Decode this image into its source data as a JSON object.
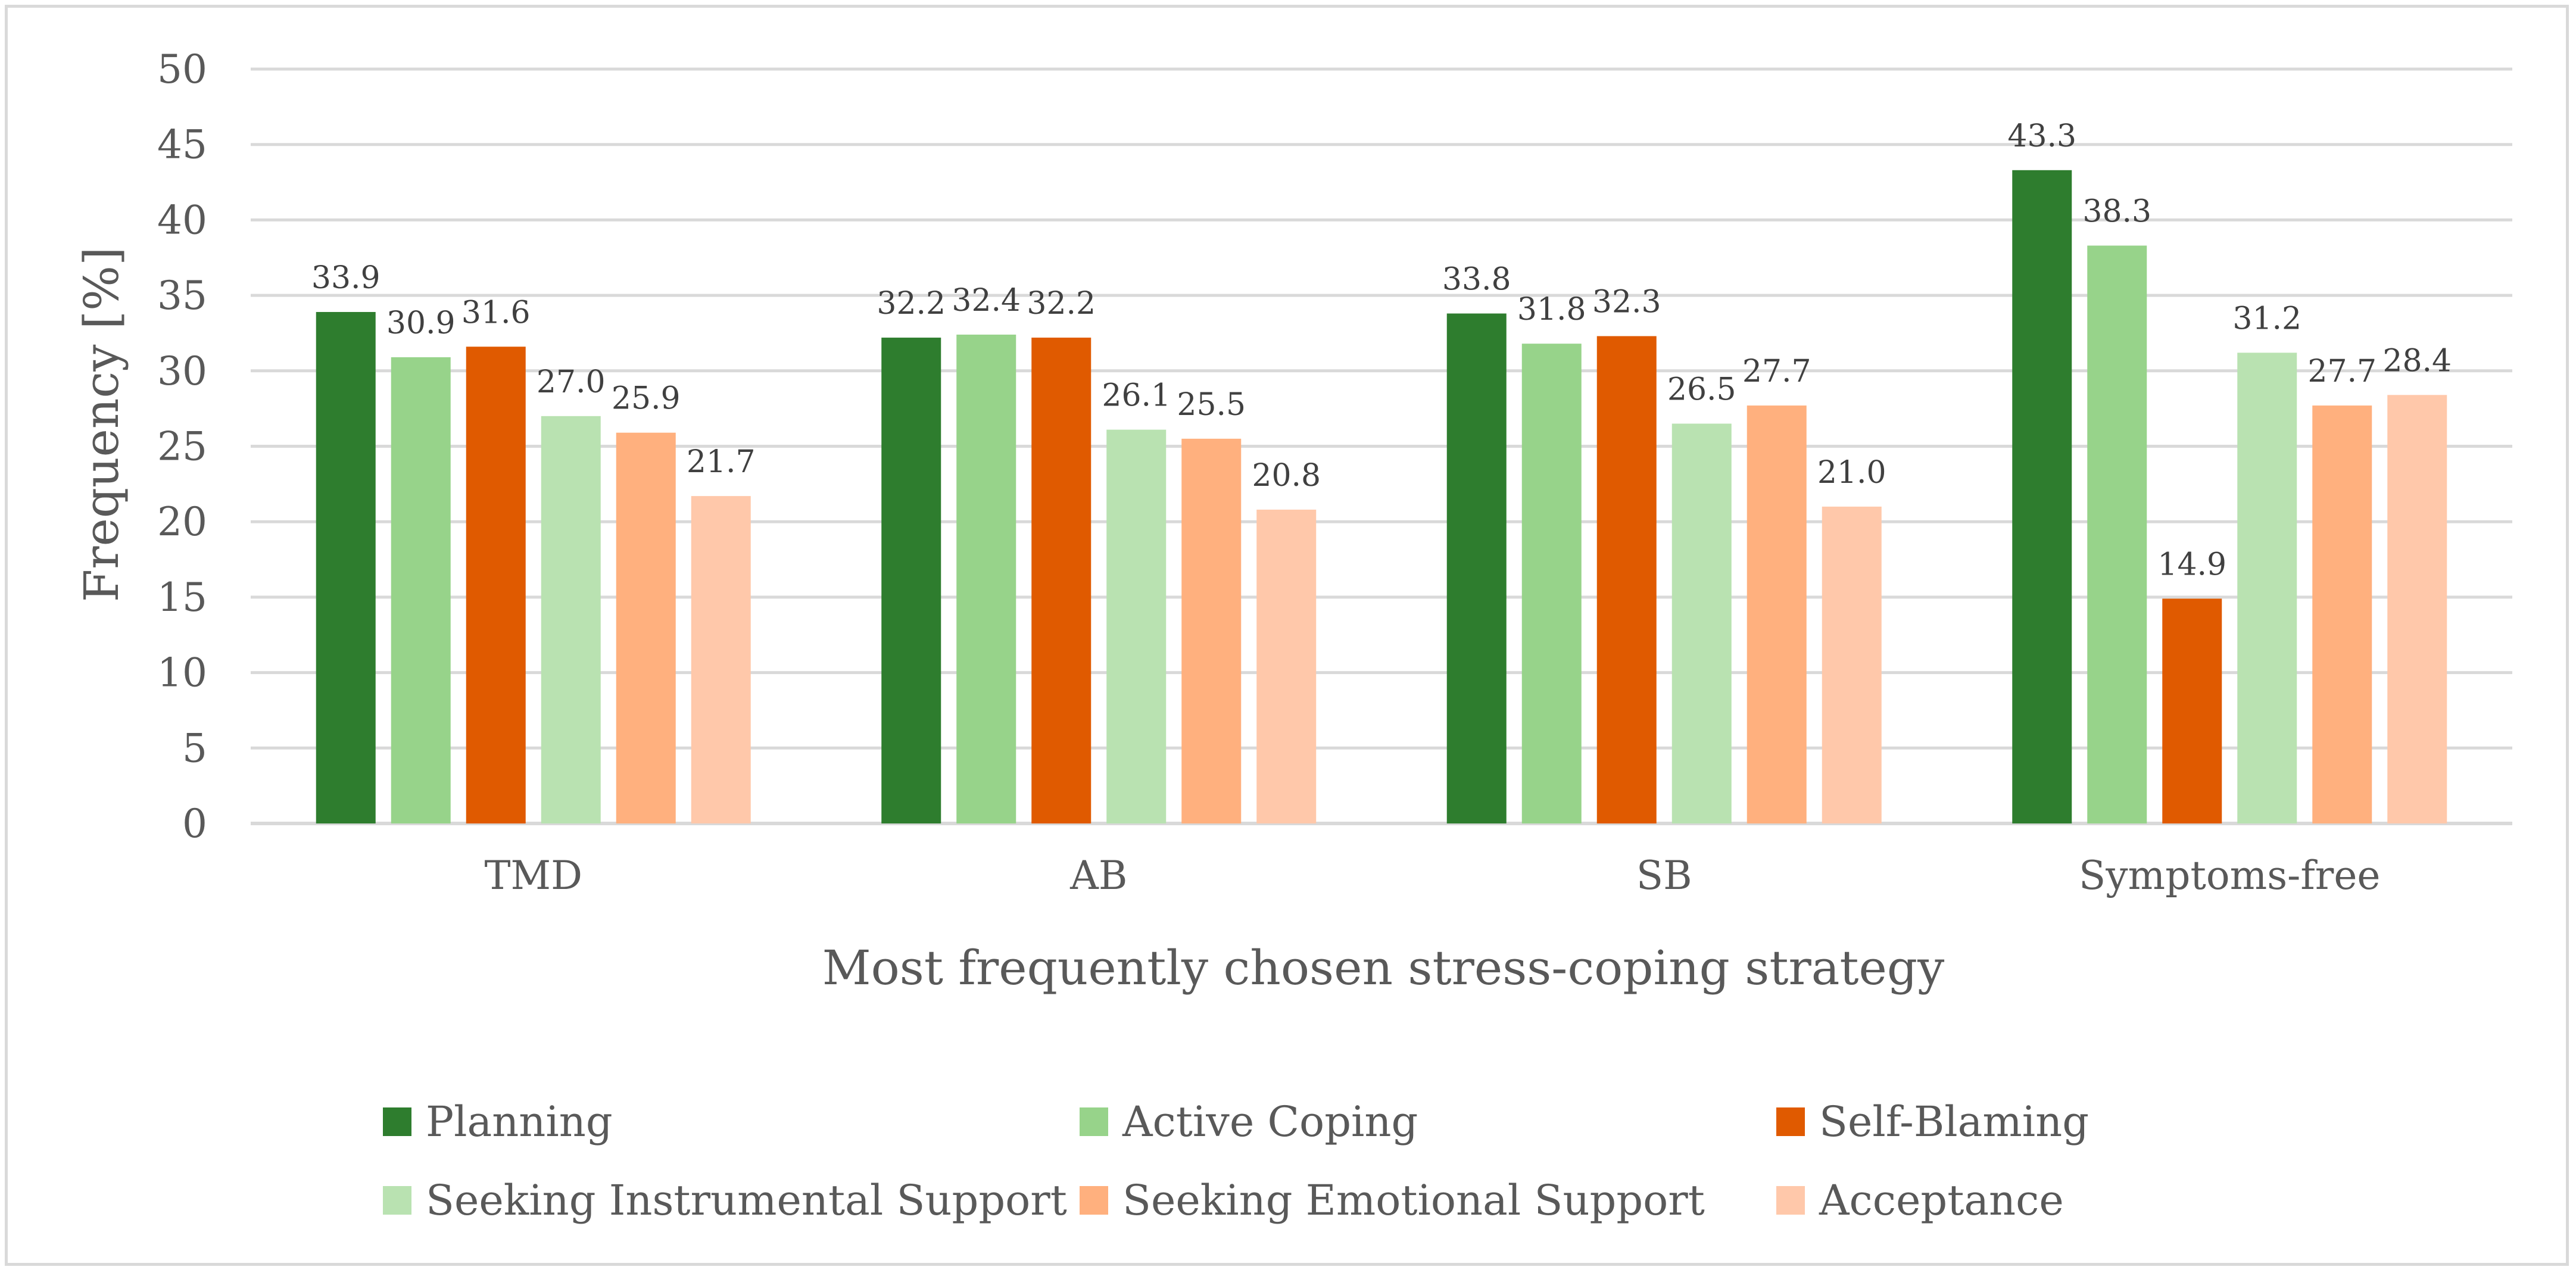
{
  "chart_data": {
    "type": "bar",
    "title": "",
    "xlabel": "Most frequently chosen stress-coping strategy",
    "ylabel": "Frequency [%]",
    "ylim": [
      0,
      50
    ],
    "yticks": [
      "0",
      "5",
      "10",
      "15",
      "20",
      "25",
      "30",
      "35",
      "40",
      "45",
      "50"
    ],
    "grid": true,
    "legend_position": "bottom",
    "categories": [
      "TMD",
      "AB",
      "SB",
      "Symptoms-free"
    ],
    "series": [
      {
        "name": "Planning",
        "color": "#2e7d2e",
        "values": [
          33.9,
          32.2,
          33.8,
          43.3
        ],
        "labels": [
          "33.9",
          "32.2",
          "33.8",
          "43.3"
        ]
      },
      {
        "name": "Active Coping",
        "color": "#97d38a",
        "values": [
          30.9,
          32.4,
          31.8,
          38.3
        ],
        "labels": [
          "30.9",
          "32.4",
          "31.8",
          "38.3"
        ]
      },
      {
        "name": "Self-Blaming",
        "color": "#e05a00",
        "values": [
          31.6,
          32.2,
          32.3,
          14.9
        ],
        "labels": [
          "31.6",
          "32.2",
          "32.3",
          "14.9"
        ]
      },
      {
        "name": "Seeking Instrumental Support",
        "color": "#b9e2b1",
        "values": [
          27.0,
          26.1,
          26.5,
          31.2
        ],
        "labels": [
          "27.0",
          "26.1",
          "26.5",
          "31.2"
        ]
      },
      {
        "name": "Seeking Emotional Support",
        "color": "#ffb07e",
        "values": [
          25.9,
          25.5,
          27.7,
          27.7
        ],
        "labels": [
          "25.9",
          "25.5",
          "27.7",
          "27.7"
        ]
      },
      {
        "name": "Acceptance",
        "color": "#ffc8aa",
        "values": [
          21.7,
          20.8,
          21.0,
          28.4
        ],
        "labels": [
          "21.7",
          "20.8",
          "21.0",
          "28.4"
        ]
      }
    ]
  }
}
